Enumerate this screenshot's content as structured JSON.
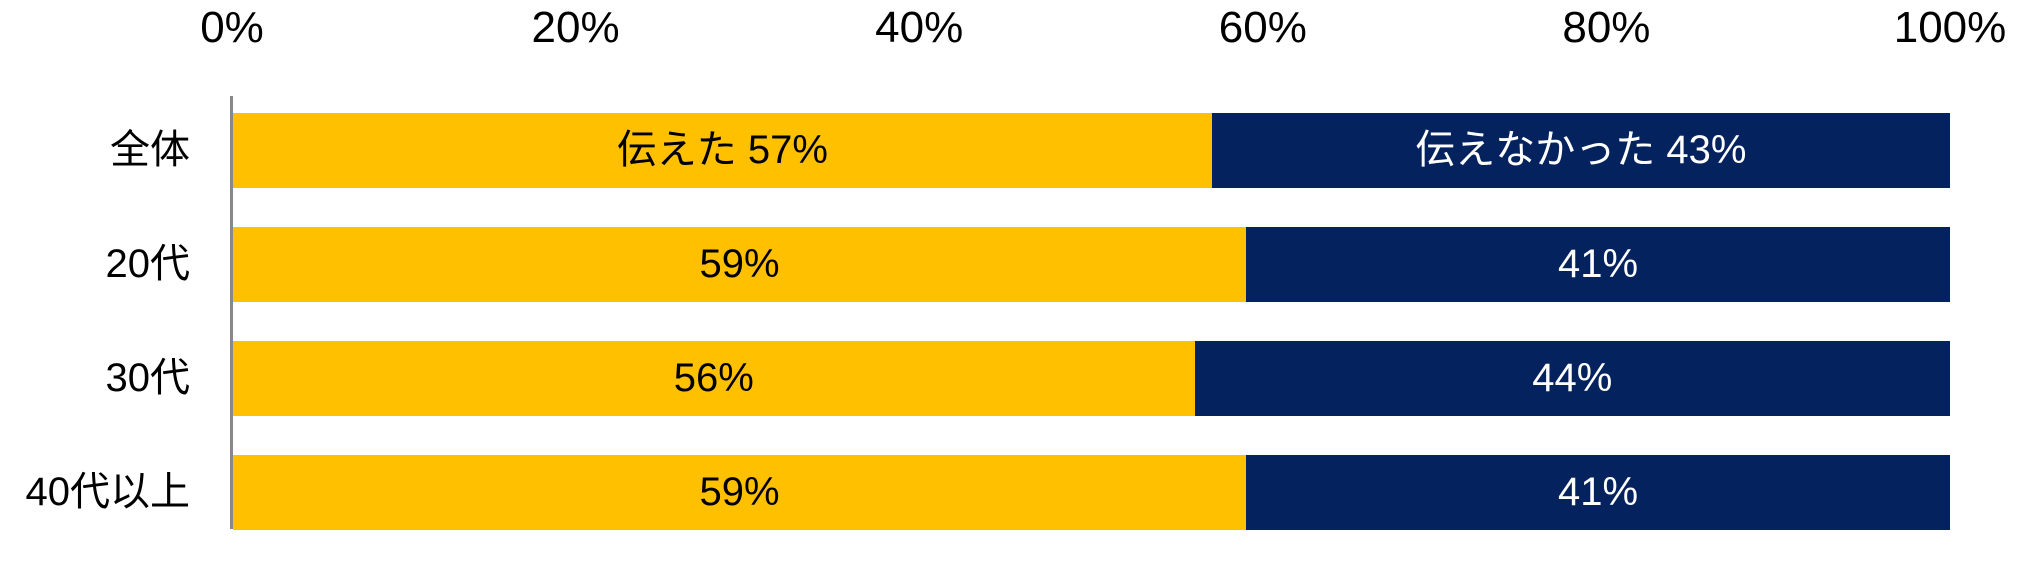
{
  "chart_data": {
    "type": "bar",
    "variant": "horizontal-stacked-100",
    "title": "",
    "categories": [
      "全体",
      "20代",
      "30代",
      "40代以上"
    ],
    "series": [
      {
        "name": "伝えた",
        "color": "#FFC000",
        "text_color": "#000000",
        "values": [
          57,
          59,
          56,
          59
        ],
        "bar_labels": [
          "伝えた 57%",
          "59%",
          "56%",
          "59%"
        ]
      },
      {
        "name": "伝えなかった",
        "color": "#04225E",
        "text_color": "#FFFFFF",
        "values": [
          43,
          41,
          44,
          41
        ],
        "bar_labels": [
          "伝えなかった 43%",
          "41%",
          "44%",
          "41%"
        ]
      }
    ],
    "x_axis": {
      "position": "top",
      "range": [
        0,
        100
      ],
      "tick_labels": [
        "0%",
        "20%",
        "40%",
        "60%",
        "80%",
        "100%"
      ],
      "tick_values": [
        0,
        20,
        40,
        60,
        80,
        100
      ]
    },
    "y_axis": {
      "position": "left",
      "line_color": "#898989"
    },
    "grid": false,
    "legend_position": "none",
    "colors": {
      "background": "#FFFFFF",
      "tick_text": "#000000",
      "category_text": "#000000"
    }
  }
}
